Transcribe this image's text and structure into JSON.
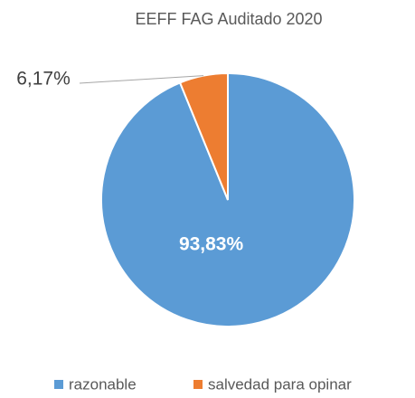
{
  "chart_data": {
    "type": "pie",
    "title": "EEFF FAG Auditado 2020",
    "categories": [
      "razonable",
      "salvedad para opinar"
    ],
    "values": [
      93.83,
      6.17
    ],
    "value_labels": [
      "93,83%",
      "6,17%"
    ],
    "colors": [
      "#5b9bd5",
      "#ed7d31"
    ]
  }
}
